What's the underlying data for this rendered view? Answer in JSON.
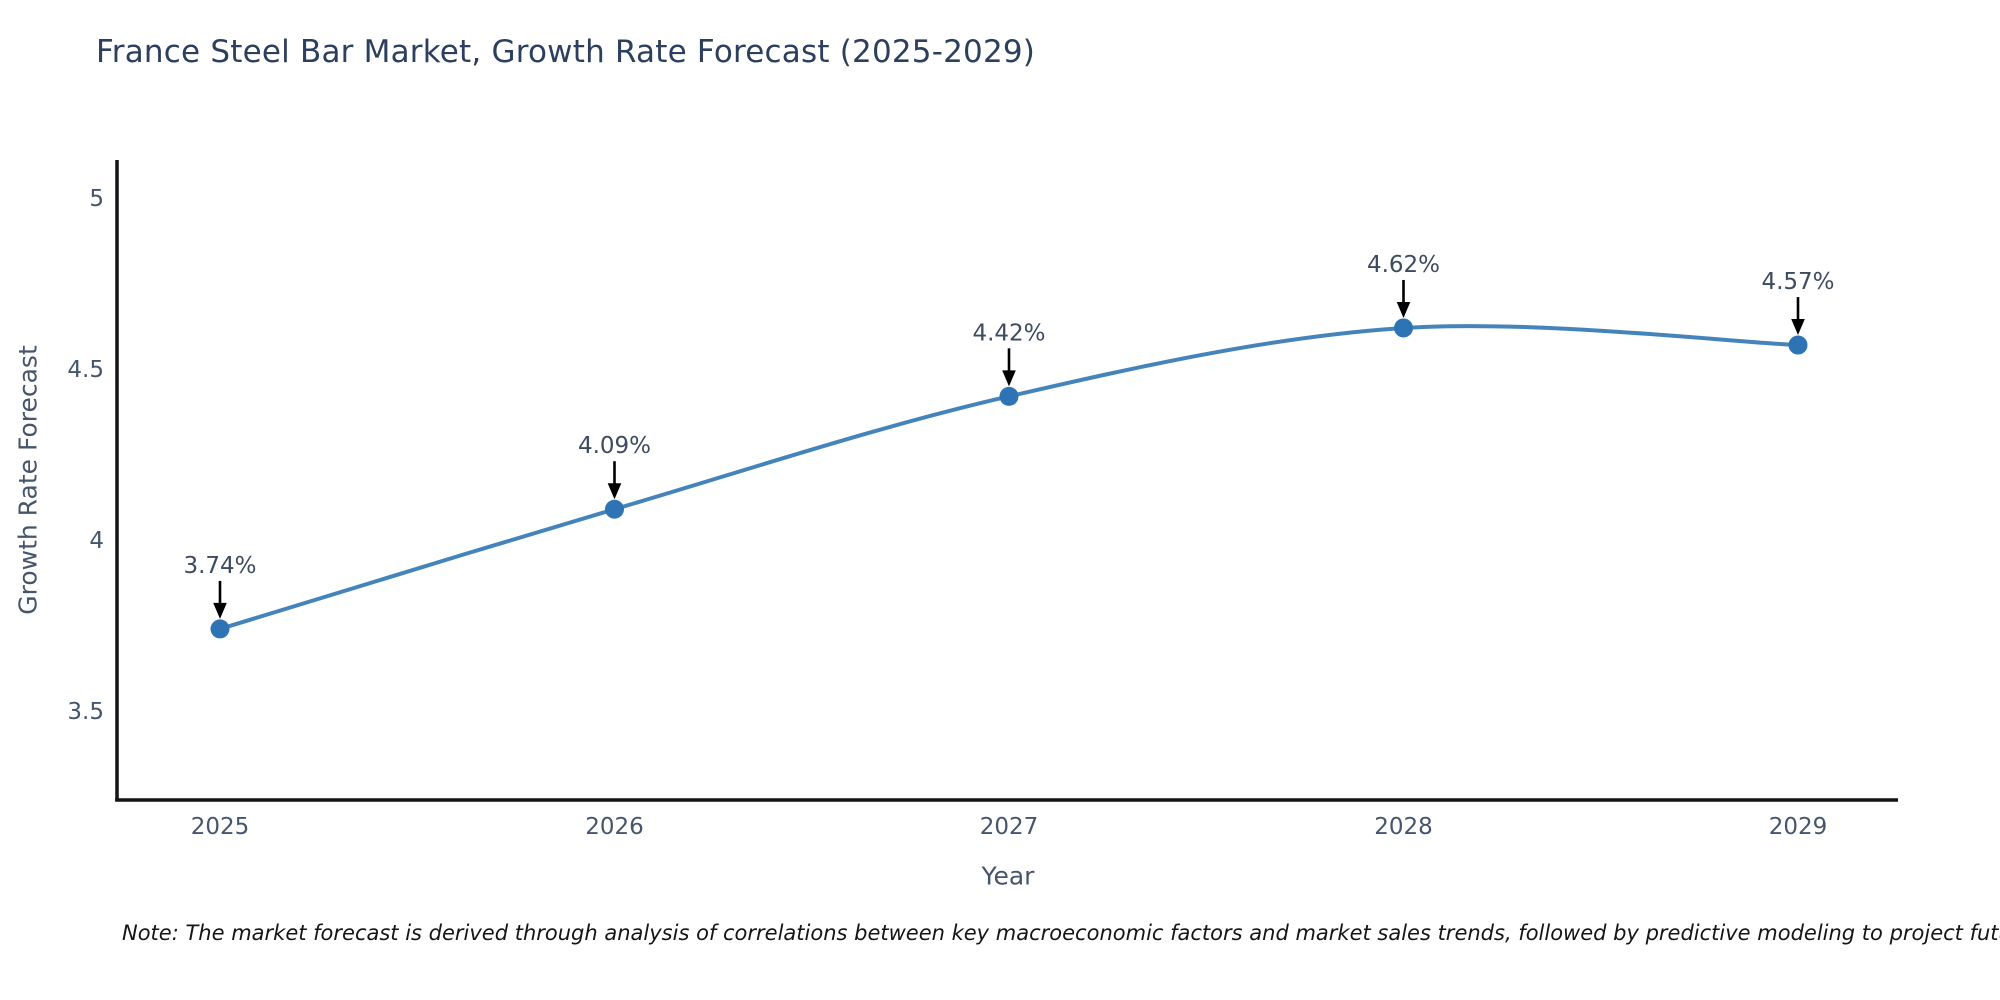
{
  "title": "France Steel Bar Market, Growth Rate Forecast (2025-2029)",
  "note": "Note: The market forecast is derived through analysis of correlations between key macroeconomic factors and market sales trends, followed by predictive modeling to project future sales",
  "x_axis": {
    "title": "Year"
  },
  "y_axis": {
    "title": "Growth Rate Forecast",
    "ticks": [
      "5",
      "4.5",
      "4",
      "3.5"
    ],
    "tick_values": [
      5,
      4.5,
      4,
      3.5
    ]
  },
  "chart_data": {
    "type": "line",
    "title": "France Steel Bar Market, Growth Rate Forecast (2025-2029)",
    "xlabel": "Year",
    "ylabel": "Growth Rate Forecast",
    "x": [
      "2025",
      "2026",
      "2027",
      "2028",
      "2029"
    ],
    "values": [
      3.74,
      4.09,
      4.42,
      4.62,
      4.57
    ],
    "point_labels": [
      "3.74%",
      "4.09%",
      "4.42%",
      "4.62%",
      "4.57%"
    ],
    "ylim": [
      3.24,
      5.11
    ],
    "y_tick_values": [
      3.5,
      4,
      4.5,
      5
    ],
    "grid": false,
    "legend": false,
    "line_shape": "spline",
    "annotations": "black arrows pointing down at each marker with percentage labels above"
  },
  "colors": {
    "background": "#ffffff",
    "line": "#4584bb",
    "marker": "#2e74b5",
    "axis_line": "#141414",
    "arrow": "#000000",
    "title_text": "#2d3f5e",
    "axis_text": "#45566c",
    "label_text": "#3c4b60",
    "note_text": "#151515"
  }
}
